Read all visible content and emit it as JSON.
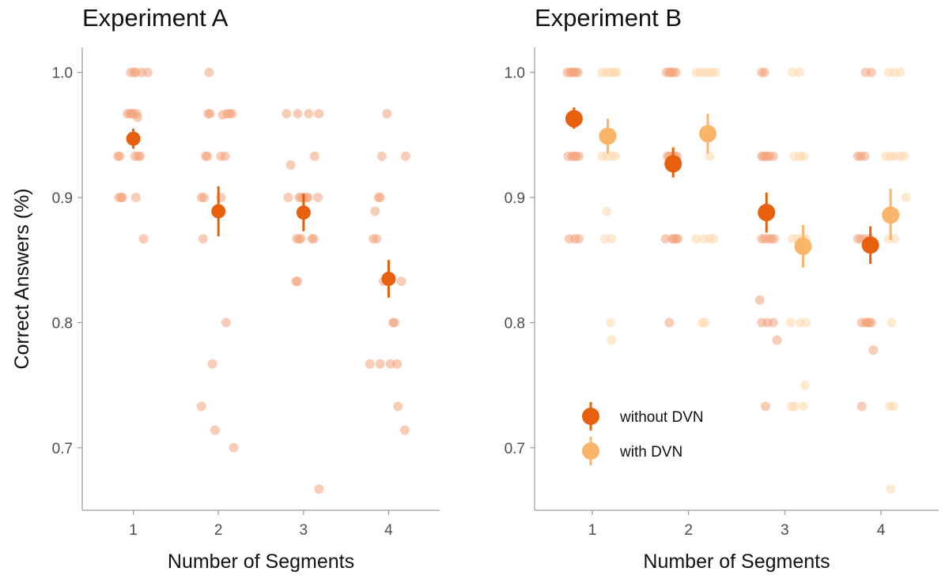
{
  "chart_data": [
    {
      "type": "scatter",
      "title": "Experiment A",
      "xlabel": "Number of Segments",
      "ylabel": "Correct Answers (%)",
      "x_ticks": [
        "1",
        "2",
        "3",
        "4"
      ],
      "y_ticks": [
        "0.7",
        "0.8",
        "0.9",
        "1.0"
      ],
      "xlim": [
        0.4,
        4.6
      ],
      "ylim": [
        0.65,
        1.02
      ],
      "grid": false,
      "series": [
        {
          "color": "#e6600d",
          "raw_color": "#f2a27a",
          "raw_points": [
            [
              0.82,
              0.933
            ],
            [
              0.84,
              0.933
            ],
            [
              0.83,
              0.9
            ],
            [
              0.86,
              0.9
            ],
            [
              0.87,
              0.9
            ],
            [
              0.93,
              0.967
            ],
            [
              0.96,
              0.967
            ],
            [
              0.98,
              0.967
            ],
            [
              0.97,
              1.0
            ],
            [
              1.01,
              1.0
            ],
            [
              1.03,
              1.0
            ],
            [
              1.1,
              1.0
            ],
            [
              1.17,
              1.0
            ],
            [
              1.0,
              0.967
            ],
            [
              1.04,
              0.967
            ],
            [
              1.05,
              0.964
            ],
            [
              1.02,
              0.933
            ],
            [
              1.06,
              0.933
            ],
            [
              1.08,
              0.933
            ],
            [
              1.03,
              0.9
            ],
            [
              1.12,
              0.867
            ],
            [
              1.82,
              0.867
            ],
            [
              1.8,
              0.9
            ],
            [
              1.83,
              0.9
            ],
            [
              1.85,
              0.933
            ],
            [
              1.87,
              0.933
            ],
            [
              1.88,
              0.967
            ],
            [
              1.9,
              0.967
            ],
            [
              1.89,
              1.0
            ],
            [
              1.93,
              0.767
            ],
            [
              1.8,
              0.733
            ],
            [
              1.96,
              0.714
            ],
            [
              2.03,
              0.9
            ],
            [
              2.03,
              0.933
            ],
            [
              2.08,
              0.933
            ],
            [
              2.05,
              0.966
            ],
            [
              2.1,
              0.967
            ],
            [
              2.13,
              0.967
            ],
            [
              2.16,
              0.967
            ],
            [
              2.09,
              0.8
            ],
            [
              2.18,
              0.7
            ],
            [
              2.82,
              0.9
            ],
            [
              2.8,
              0.967
            ],
            [
              2.85,
              0.926
            ],
            [
              2.91,
              0.833
            ],
            [
              2.93,
              0.833
            ],
            [
              2.92,
              0.867
            ],
            [
              2.95,
              0.867
            ],
            [
              2.97,
              0.867
            ],
            [
              2.95,
              0.9
            ],
            [
              2.97,
              0.9
            ],
            [
              2.93,
              0.967
            ],
            [
              3.04,
              0.9
            ],
            [
              3.05,
              0.9
            ],
            [
              3.06,
              0.967
            ],
            [
              3.1,
              0.867
            ],
            [
              3.12,
              0.867
            ],
            [
              3.13,
              0.933
            ],
            [
              3.17,
              0.9
            ],
            [
              3.18,
              0.967
            ],
            [
              3.18,
              0.667
            ],
            [
              3.0,
              0.9
            ],
            [
              3.78,
              0.767
            ],
            [
              3.82,
              0.867
            ],
            [
              3.86,
              0.867
            ],
            [
              3.84,
              0.889
            ],
            [
              3.88,
              0.9
            ],
            [
              3.9,
              0.9
            ],
            [
              3.9,
              0.767
            ],
            [
              3.94,
              0.833
            ],
            [
              3.92,
              0.933
            ],
            [
              3.98,
              0.967
            ],
            [
              4.02,
              0.767
            ],
            [
              4.05,
              0.8
            ],
            [
              4.07,
              0.8
            ],
            [
              4.1,
              0.767
            ],
            [
              4.11,
              0.733
            ],
            [
              4.15,
              0.833
            ],
            [
              4.19,
              0.714
            ],
            [
              4.2,
              0.933
            ]
          ],
          "mean_points": [
            {
              "x": 1,
              "y": 0.947,
              "lo": 0.939,
              "hi": 0.955
            },
            {
              "x": 2,
              "y": 0.889,
              "lo": 0.869,
              "hi": 0.909
            },
            {
              "x": 3,
              "y": 0.888,
              "lo": 0.873,
              "hi": 0.903
            },
            {
              "x": 4,
              "y": 0.835,
              "lo": 0.82,
              "hi": 0.85
            }
          ]
        }
      ]
    },
    {
      "type": "scatter",
      "title": "Experiment B",
      "xlabel": "Number of Segments",
      "x_ticks": [
        "1",
        "2",
        "3",
        "4"
      ],
      "y_ticks": [
        "0.7",
        "0.8",
        "0.9",
        "1.0"
      ],
      "xlim": [
        0.4,
        4.6
      ],
      "ylim": [
        0.65,
        1.02
      ],
      "grid": false,
      "legend_placement": "bottom-left",
      "series": [
        {
          "name": "without DVN",
          "color": "#e6600d",
          "raw_color": "#f2a27a",
          "raw_points": [
            [
              0.74,
              1.0
            ],
            [
              0.77,
              1.0
            ],
            [
              0.79,
              1.0
            ],
            [
              0.81,
              1.0
            ],
            [
              0.83,
              1.0
            ],
            [
              0.85,
              1.0
            ],
            [
              0.75,
              0.933
            ],
            [
              0.79,
              0.933
            ],
            [
              0.81,
              0.933
            ],
            [
              0.83,
              0.933
            ],
            [
              0.86,
              0.933
            ],
            [
              0.76,
              0.867
            ],
            [
              0.82,
              0.867
            ],
            [
              0.86,
              0.867
            ],
            [
              1.77,
              1.0
            ],
            [
              1.8,
              1.0
            ],
            [
              1.82,
              1.0
            ],
            [
              1.84,
              1.0
            ],
            [
              1.87,
              1.0
            ],
            [
              1.78,
              0.933
            ],
            [
              1.8,
              0.933
            ],
            [
              1.82,
              0.933
            ],
            [
              1.86,
              0.933
            ],
            [
              1.88,
              0.933
            ],
            [
              1.76,
              0.867
            ],
            [
              1.83,
              0.867
            ],
            [
              1.85,
              0.867
            ],
            [
              1.87,
              0.867
            ],
            [
              1.89,
              0.867
            ],
            [
              1.8,
              0.8
            ],
            [
              2.76,
              1.0
            ],
            [
              2.79,
              1.0
            ],
            [
              2.76,
              0.933
            ],
            [
              2.78,
              0.933
            ],
            [
              2.8,
              0.933
            ],
            [
              2.82,
              0.933
            ],
            [
              2.84,
              0.933
            ],
            [
              2.88,
              0.933
            ],
            [
              2.76,
              0.867
            ],
            [
              2.79,
              0.867
            ],
            [
              2.83,
              0.867
            ],
            [
              2.86,
              0.867
            ],
            [
              2.89,
              0.867
            ],
            [
              2.74,
              0.818
            ],
            [
              2.76,
              0.8
            ],
            [
              2.82,
              0.8
            ],
            [
              2.88,
              0.8
            ],
            [
              2.8,
              0.733
            ],
            [
              2.92,
              0.786
            ],
            [
              3.76,
              0.933
            ],
            [
              3.79,
              0.933
            ],
            [
              3.83,
              0.933
            ],
            [
              3.76,
              0.867
            ],
            [
              3.79,
              0.867
            ],
            [
              3.83,
              0.867
            ],
            [
              3.88,
              0.867
            ],
            [
              3.8,
              0.8
            ],
            [
              3.84,
              0.8
            ],
            [
              3.86,
              0.8
            ],
            [
              3.88,
              0.8
            ],
            [
              3.9,
              0.8
            ],
            [
              3.8,
              0.733
            ],
            [
              3.84,
              1.0
            ],
            [
              3.9,
              1.0
            ],
            [
              3.92,
              0.778
            ]
          ],
          "mean_points": [
            {
              "x": 0.81,
              "y": 0.963,
              "lo": 0.955,
              "hi": 0.972
            },
            {
              "x": 1.84,
              "y": 0.927,
              "lo": 0.916,
              "hi": 0.94
            },
            {
              "x": 2.81,
              "y": 0.888,
              "lo": 0.872,
              "hi": 0.904
            },
            {
              "x": 3.89,
              "y": 0.862,
              "lo": 0.847,
              "hi": 0.877
            }
          ]
        },
        {
          "name": "with DVN",
          "color": "#fbb56a",
          "raw_color": "#fdd7ac",
          "raw_points": [
            [
              1.1,
              1.0
            ],
            [
              1.14,
              1.0
            ],
            [
              1.18,
              1.0
            ],
            [
              1.21,
              1.0
            ],
            [
              1.23,
              1.0
            ],
            [
              1.25,
              1.0
            ],
            [
              1.1,
              0.933
            ],
            [
              1.15,
              0.933
            ],
            [
              1.2,
              0.933
            ],
            [
              1.24,
              0.933
            ],
            [
              1.15,
              0.889
            ],
            [
              1.13,
              0.867
            ],
            [
              1.2,
              0.867
            ],
            [
              1.19,
              0.8
            ],
            [
              1.2,
              0.786
            ],
            [
              2.08,
              1.0
            ],
            [
              2.12,
              1.0
            ],
            [
              2.16,
              1.0
            ],
            [
              2.2,
              1.0
            ],
            [
              2.24,
              1.0
            ],
            [
              2.28,
              1.0
            ],
            [
              2.22,
              0.933
            ],
            [
              2.08,
              0.867
            ],
            [
              2.16,
              0.867
            ],
            [
              2.22,
              0.867
            ],
            [
              2.26,
              0.867
            ],
            [
              2.14,
              0.8
            ],
            [
              2.17,
              0.8
            ],
            [
              3.08,
              1.0
            ],
            [
              3.15,
              1.0
            ],
            [
              3.1,
              0.933
            ],
            [
              3.16,
              0.933
            ],
            [
              3.2,
              0.933
            ],
            [
              3.08,
              0.867
            ],
            [
              3.13,
              0.867
            ],
            [
              3.18,
              0.867
            ],
            [
              3.22,
              0.867
            ],
            [
              3.06,
              0.8
            ],
            [
              3.16,
              0.8
            ],
            [
              3.22,
              0.8
            ],
            [
              3.07,
              0.733
            ],
            [
              3.1,
              0.733
            ],
            [
              3.19,
              0.733
            ],
            [
              3.21,
              0.75
            ],
            [
              4.08,
              1.0
            ],
            [
              4.14,
              1.0
            ],
            [
              4.2,
              1.0
            ],
            [
              4.05,
              0.933
            ],
            [
              4.1,
              0.933
            ],
            [
              4.14,
              0.933
            ],
            [
              4.2,
              0.933
            ],
            [
              4.24,
              0.933
            ],
            [
              4.08,
              0.867
            ],
            [
              4.14,
              0.867
            ],
            [
              4.26,
              0.9
            ],
            [
              4.11,
              0.8
            ],
            [
              4.09,
              0.733
            ],
            [
              4.13,
              0.733
            ],
            [
              4.1,
              0.667
            ]
          ],
          "mean_points": [
            {
              "x": 1.16,
              "y": 0.949,
              "lo": 0.935,
              "hi": 0.963
            },
            {
              "x": 2.2,
              "y": 0.951,
              "lo": 0.935,
              "hi": 0.967
            },
            {
              "x": 3.19,
              "y": 0.861,
              "lo": 0.844,
              "hi": 0.878
            },
            {
              "x": 4.1,
              "y": 0.886,
              "lo": 0.866,
              "hi": 0.907
            }
          ]
        }
      ]
    }
  ],
  "legend": {
    "items": [
      {
        "label": "without DVN",
        "color": "#e6600d"
      },
      {
        "label": "with DVN",
        "color": "#fbb56a"
      }
    ]
  }
}
